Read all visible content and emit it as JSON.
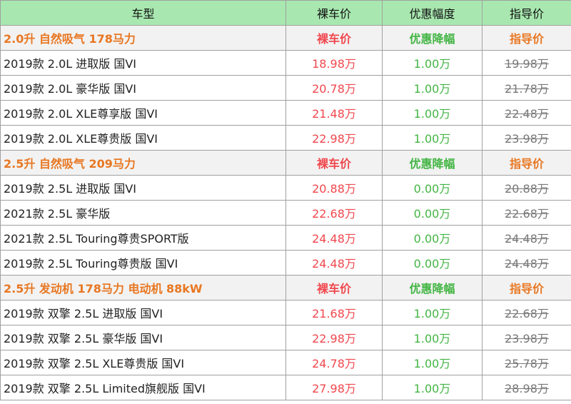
{
  "header": {
    "model": "车型",
    "price": "裸车价",
    "discount": "优惠幅度",
    "guide": "指导价"
  },
  "sections": [
    {
      "title": "2.0升 自然吸气 178马力",
      "price_label": "裸车价",
      "discount_label": "优惠降幅",
      "guide_label": "指导价",
      "rows": [
        {
          "model": "2019款 2.0L 进取版 国VI",
          "price": "18.98万",
          "discount": "1.00万",
          "guide": "19.98万"
        },
        {
          "model": "2019款 2.0L 豪华版 国VI",
          "price": "20.78万",
          "discount": "1.00万",
          "guide": "21.78万"
        },
        {
          "model": "2019款 2.0L XLE尊享版 国VI",
          "price": "21.48万",
          "discount": "1.00万",
          "guide": "22.48万"
        },
        {
          "model": "2019款 2.0L XLE尊贵版 国VI",
          "price": "22.98万",
          "discount": "1.00万",
          "guide": "23.98万"
        }
      ]
    },
    {
      "title": "2.5升 自然吸气 209马力",
      "price_label": "裸车价",
      "discount_label": "优惠降幅",
      "guide_label": "指导价",
      "rows": [
        {
          "model": "2019款 2.5L 进取版 国VI",
          "price": "20.88万",
          "discount": "0.00万",
          "guide": "20.88万"
        },
        {
          "model": "2021款 2.5L 豪华版",
          "price": "22.68万",
          "discount": "0.00万",
          "guide": "22.68万"
        },
        {
          "model": "2021款 2.5L Touring尊贵SPORT版",
          "price": "24.48万",
          "discount": "0.00万",
          "guide": "24.48万"
        },
        {
          "model": "2019款 2.5L Touring尊贵版 国VI",
          "price": "24.48万",
          "discount": "0.00万",
          "guide": "24.48万"
        }
      ]
    },
    {
      "title": "2.5升 发动机 178马力 电动机 88kW",
      "price_label": "裸车价",
      "discount_label": "优惠降幅",
      "guide_label": "指导价",
      "rows": [
        {
          "model": "2019款 双擎 2.5L 进取版 国VI",
          "price": "21.68万",
          "discount": "1.00万",
          "guide": "22.68万"
        },
        {
          "model": "2019款 双擎 2.5L 豪华版 国VI",
          "price": "22.98万",
          "discount": "1.00万",
          "guide": "23.98万"
        },
        {
          "model": "2019款 双擎 2.5L XLE尊贵版 国VI",
          "price": "24.78万",
          "discount": "1.00万",
          "guide": "25.78万"
        },
        {
          "model": "2019款 双擎 2.5L Limited旗舰版 国VI",
          "price": "27.98万",
          "discount": "1.00万",
          "guide": "28.98万"
        }
      ]
    }
  ]
}
